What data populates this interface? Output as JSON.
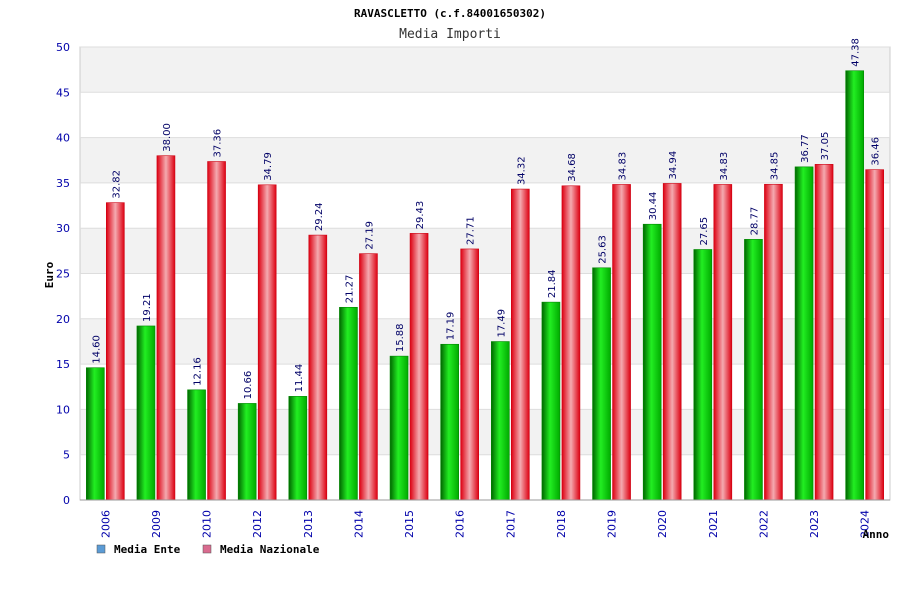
{
  "chart_data": {
    "type": "bar",
    "title": "RAVASCLETTO (c.f.84001650302)",
    "subtitle": "Media Importi",
    "xlabel": "Anno",
    "ylabel": "Euro",
    "ylim": [
      0,
      50
    ],
    "yticks": [
      0,
      5,
      10,
      15,
      20,
      25,
      30,
      35,
      40,
      45,
      50
    ],
    "grid": true,
    "legend_position": "bottom-left",
    "categories": [
      "2006",
      "2009",
      "2010",
      "2012",
      "2013",
      "2014",
      "2015",
      "2016",
      "2017",
      "2018",
      "2019",
      "2020",
      "2021",
      "2022",
      "2023",
      "2024"
    ],
    "series": [
      {
        "name": "Media Ente",
        "color": "#00cc00",
        "legend_color": "#5b9bd5",
        "values": [
          14.6,
          19.21,
          12.16,
          10.66,
          11.44,
          21.27,
          15.88,
          17.19,
          17.49,
          21.84,
          25.63,
          30.44,
          27.65,
          28.77,
          36.77,
          47.38
        ],
        "labels": [
          "14.60",
          "19.21",
          "12.16",
          "10.66",
          "11.44",
          "21.27",
          "15.88",
          "17.19",
          "17.49",
          "21.84",
          "25.63",
          "30.44",
          "27.65",
          "28.77",
          "36.77",
          "47.38"
        ]
      },
      {
        "name": "Media Nazionale",
        "color": "#ee1122",
        "legend_color": "#d96b8f",
        "values": [
          32.82,
          38.0,
          37.36,
          34.79,
          29.24,
          27.19,
          29.43,
          27.71,
          34.32,
          34.68,
          34.83,
          34.94,
          34.83,
          34.85,
          37.05,
          36.46
        ],
        "labels": [
          "32.82",
          "38.00",
          "37.36",
          "34.79",
          "29.24",
          "27.19",
          "29.43",
          "27.71",
          "34.32",
          "34.68",
          "34.83",
          "34.94",
          "34.83",
          "34.85",
          "37.05",
          "36.46"
        ]
      }
    ]
  }
}
